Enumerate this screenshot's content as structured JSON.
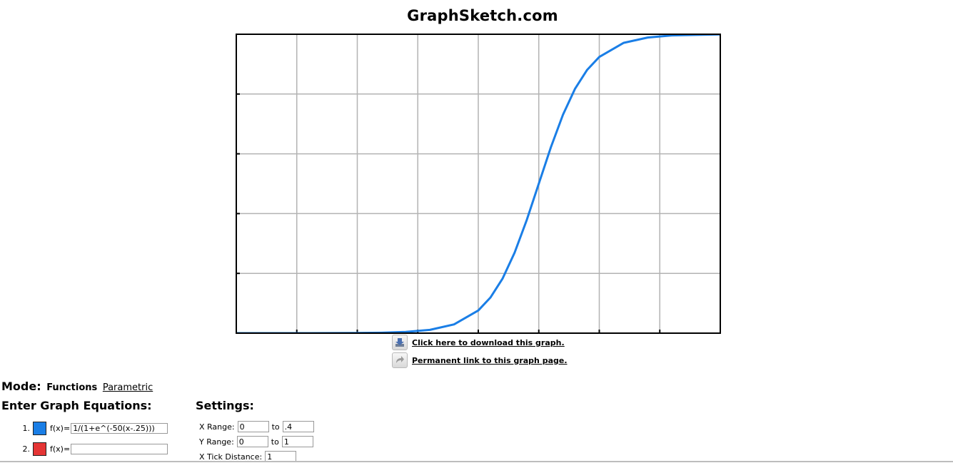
{
  "site": {
    "title": "GraphSketch.com"
  },
  "links": {
    "download": "Click here to download this graph.",
    "permanent": "Permanent link to this graph page."
  },
  "mode": {
    "label": "Mode:",
    "current": "Functions",
    "alternate": "Parametric"
  },
  "equations": {
    "heading": "Enter Graph Equations:",
    "items": [
      {
        "number": "1.",
        "prefix": "f(x)=",
        "value": "1/(1+e^(-50(x-.25)))",
        "color": "#1a7ee6"
      },
      {
        "number": "2.",
        "prefix": "f(x)=",
        "value": "",
        "color": "#e53535"
      }
    ]
  },
  "settings": {
    "heading": "Settings:",
    "x_range": {
      "label": "X Range:",
      "from": "0",
      "to_label": "to",
      "to": ".4"
    },
    "y_range": {
      "label": "Y Range:",
      "from": "0",
      "to_label": "to",
      "to": "1"
    },
    "x_tick": {
      "label": "X Tick Distance:",
      "value": "1"
    }
  },
  "chart_data": {
    "type": "line",
    "xlim": [
      0,
      0.4
    ],
    "ylim": [
      0,
      1
    ],
    "grid": true,
    "series": [
      {
        "color": "#1a7ee6",
        "x": [
          0,
          0.02,
          0.04,
          0.06,
          0.08,
          0.1,
          0.12,
          0.14,
          0.16,
          0.18,
          0.2,
          0.21,
          0.22,
          0.23,
          0.24,
          0.25,
          0.26,
          0.27,
          0.28,
          0.29,
          0.3,
          0.32,
          0.34,
          0.36,
          0.38,
          0.4
        ],
        "y": [
          3.7e-06,
          1e-05,
          2.75e-05,
          7.48e-05,
          0.000203,
          0.000553,
          0.0015,
          0.00407,
          0.011,
          0.0293,
          0.0759,
          0.119,
          0.182,
          0.269,
          0.378,
          0.5,
          0.622,
          0.731,
          0.818,
          0.881,
          0.924,
          0.971,
          0.989,
          0.996,
          0.998,
          0.9994
        ]
      }
    ]
  }
}
